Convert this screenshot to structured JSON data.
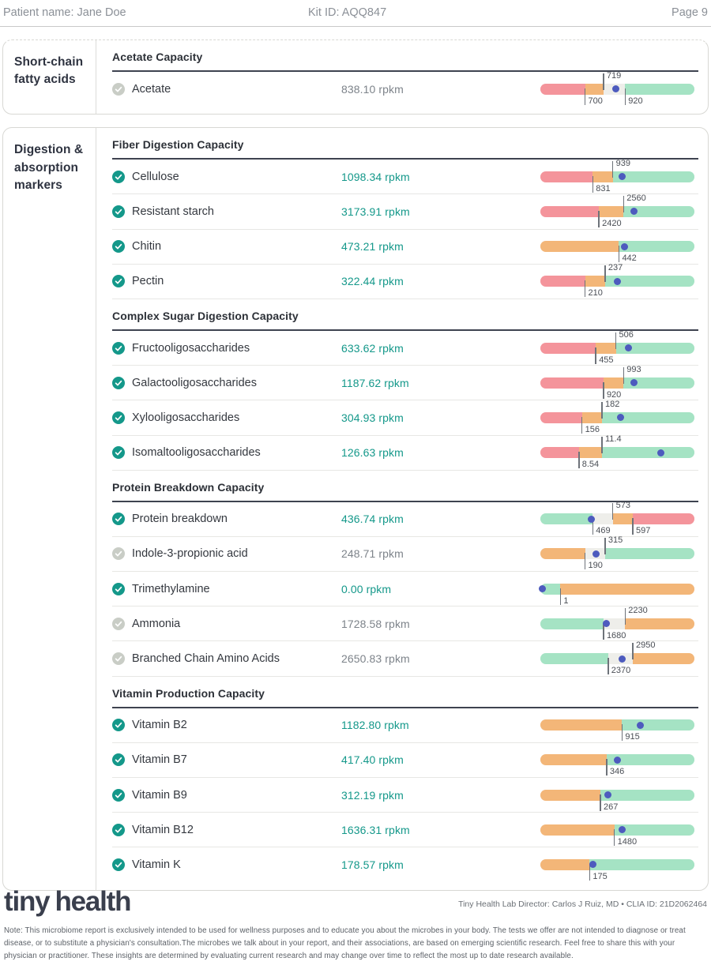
{
  "header": {
    "patient_label": "Patient name: Jane Doe",
    "kit_label": "Kit ID: AQQ847",
    "page_label": "Page 9"
  },
  "colors": {
    "accent_teal": "#14988a",
    "value_neutral": "#7d838a",
    "badge_good": "#14988a",
    "badge_neutral": "#c9cdc6",
    "bar_red": "#f4949b",
    "bar_orange": "#f3b678",
    "bar_green": "#a5e3c4",
    "bar_gray": "#eeeeea",
    "dot_indigo": "#4d5bbe"
  },
  "cards": [
    {
      "sidebar_label": "Short-chain fatty acids",
      "continued": true,
      "sections": [
        {
          "title": "Acetate Capacity",
          "rows": [
            {
              "label": "Acetate",
              "status": "neutral",
              "value": "838.10 rpkm",
              "bar": {
                "segments": [
                  {
                    "c": "red",
                    "to": 29
                  },
                  {
                    "c": "gray2",
                    "to": 41
                  },
                  {
                    "c": "grayzone",
                    "to": 55
                  },
                  {
                    "c": "green",
                    "to": 100
                  }
                ],
                "ticks": [
                  {
                    "p": 29,
                    "l": "700",
                    "s": "b"
                  },
                  {
                    "p": 41,
                    "l": "719",
                    "s": "t"
                  },
                  {
                    "p": 55,
                    "l": "920",
                    "s": "b"
                  }
                ],
                "dot": 49
              }
            }
          ]
        }
      ]
    },
    {
      "sidebar_label": "Digestion & absorption markers",
      "continued": false,
      "sections": [
        {
          "title": "Fiber Digestion Capacity",
          "rows": [
            {
              "label": "Cellulose",
              "status": "good",
              "value": "1098.34 rpkm",
              "bar": {
                "segments": [
                  {
                    "c": "red",
                    "to": 34
                  },
                  {
                    "c": "orange",
                    "to": 47
                  },
                  {
                    "c": "green",
                    "to": 100
                  }
                ],
                "ticks": [
                  {
                    "p": 34,
                    "l": "831",
                    "s": "b"
                  },
                  {
                    "p": 47,
                    "l": "939",
                    "s": "t"
                  }
                ],
                "dot": 53
              }
            },
            {
              "label": "Resistant starch",
              "status": "good",
              "value": "3173.91 rpkm",
              "bar": {
                "segments": [
                  {
                    "c": "red",
                    "to": 38
                  },
                  {
                    "c": "orange",
                    "to": 54
                  },
                  {
                    "c": "green",
                    "to": 100
                  }
                ],
                "ticks": [
                  {
                    "p": 38,
                    "l": "2420",
                    "s": "b"
                  },
                  {
                    "p": 54,
                    "l": "2560",
                    "s": "t"
                  }
                ],
                "dot": 61
              }
            },
            {
              "label": "Chitin",
              "status": "good",
              "value": "473.21 rpkm",
              "bar": {
                "segments": [
                  {
                    "c": "orange",
                    "to": 51
                  },
                  {
                    "c": "green",
                    "to": 100
                  }
                ],
                "ticks": [
                  {
                    "p": 51,
                    "l": "442",
                    "s": "b"
                  }
                ],
                "dot": 54.5
              }
            },
            {
              "label": "Pectin",
              "status": "good",
              "value": "322.44 rpkm",
              "bar": {
                "segments": [
                  {
                    "c": "red",
                    "to": 29
                  },
                  {
                    "c": "orange",
                    "to": 42
                  },
                  {
                    "c": "green",
                    "to": 100
                  }
                ],
                "ticks": [
                  {
                    "p": 29,
                    "l": "210",
                    "s": "b"
                  },
                  {
                    "p": 42,
                    "l": "237",
                    "s": "t"
                  }
                ],
                "dot": 50
              }
            }
          ]
        },
        {
          "title": "Complex Sugar Digestion Capacity",
          "rows": [
            {
              "label": "Fructooligosaccharides",
              "status": "good",
              "value": "633.62 rpkm",
              "bar": {
                "segments": [
                  {
                    "c": "red",
                    "to": 36
                  },
                  {
                    "c": "orange",
                    "to": 49
                  },
                  {
                    "c": "green",
                    "to": 100
                  }
                ],
                "ticks": [
                  {
                    "p": 36,
                    "l": "455",
                    "s": "b"
                  },
                  {
                    "p": 49,
                    "l": "506",
                    "s": "t"
                  }
                ],
                "dot": 57
              }
            },
            {
              "label": "Galactooligosaccharides",
              "status": "good",
              "value": "1187.62 rpkm",
              "bar": {
                "segments": [
                  {
                    "c": "red",
                    "to": 41
                  },
                  {
                    "c": "orange",
                    "to": 54
                  },
                  {
                    "c": "green",
                    "to": 100
                  }
                ],
                "ticks": [
                  {
                    "p": 41,
                    "l": "920",
                    "s": "b"
                  },
                  {
                    "p": 54,
                    "l": "993",
                    "s": "t"
                  }
                ],
                "dot": 61
              }
            },
            {
              "label": "Xylooligosaccharides",
              "status": "good",
              "value": "304.93 rpkm",
              "bar": {
                "segments": [
                  {
                    "c": "red",
                    "to": 27
                  },
                  {
                    "c": "orange",
                    "to": 40
                  },
                  {
                    "c": "green",
                    "to": 100
                  }
                ],
                "ticks": [
                  {
                    "p": 27,
                    "l": "156",
                    "s": "b"
                  },
                  {
                    "p": 40,
                    "l": "182",
                    "s": "t"
                  }
                ],
                "dot": 52
              }
            },
            {
              "label": "Isomaltooligosaccharides",
              "status": "good",
              "value": "126.63 rpkm",
              "bar": {
                "segments": [
                  {
                    "c": "red",
                    "to": 25
                  },
                  {
                    "c": "orange",
                    "to": 40
                  },
                  {
                    "c": "green",
                    "to": 100
                  }
                ],
                "ticks": [
                  {
                    "p": 25,
                    "l": "8.54",
                    "s": "b"
                  },
                  {
                    "p": 40,
                    "l": "11.4",
                    "s": "t"
                  }
                ],
                "dot": 78
              }
            }
          ]
        },
        {
          "title": "Protein Breakdown Capacity",
          "rows": [
            {
              "label": "Protein breakdown",
              "status": "good",
              "value": "436.74 rpkm",
              "bar": {
                "segments": [
                  {
                    "c": "green",
                    "to": 34
                  },
                  {
                    "c": "grayzone",
                    "to": 47
                  },
                  {
                    "c": "orange",
                    "to": 60
                  },
                  {
                    "c": "red",
                    "to": 100
                  }
                ],
                "ticks": [
                  {
                    "p": 34,
                    "l": "469",
                    "s": "b"
                  },
                  {
                    "p": 47,
                    "l": "573",
                    "s": "t"
                  },
                  {
                    "p": 60,
                    "l": "597",
                    "s": "b"
                  }
                ],
                "dot": 33
              }
            },
            {
              "label": "Indole-3-propionic acid",
              "status": "neutral",
              "value": "248.71 rpkm",
              "bar": {
                "segments": [
                  {
                    "c": "orange",
                    "to": 29
                  },
                  {
                    "c": "grayzone",
                    "to": 42
                  },
                  {
                    "c": "green",
                    "to": 100
                  }
                ],
                "ticks": [
                  {
                    "p": 29,
                    "l": "190",
                    "s": "b"
                  },
                  {
                    "p": 42,
                    "l": "315",
                    "s": "t"
                  }
                ],
                "dot": 36
              }
            },
            {
              "label": "Trimethylamine",
              "status": "good",
              "value": "0.00 rpkm",
              "bar": {
                "segments": [
                  {
                    "c": "green",
                    "to": 13
                  },
                  {
                    "c": "orange",
                    "to": 100
                  }
                ],
                "ticks": [
                  {
                    "p": 13,
                    "l": "1",
                    "s": "b"
                  }
                ],
                "dot": 1.5
              }
            },
            {
              "label": "Ammonia",
              "status": "neutral",
              "value": "1728.58 rpkm",
              "bar": {
                "segments": [
                  {
                    "c": "green",
                    "to": 41
                  },
                  {
                    "c": "grayzone",
                    "to": 55
                  },
                  {
                    "c": "orange",
                    "to": 100
                  }
                ],
                "ticks": [
                  {
                    "p": 41,
                    "l": "1680",
                    "s": "b"
                  },
                  {
                    "p": 55,
                    "l": "2230",
                    "s": "t"
                  }
                ],
                "dot": 43
              }
            },
            {
              "label": "Branched Chain Amino Acids",
              "status": "neutral",
              "value": "2650.83 rpkm",
              "bar": {
                "segments": [
                  {
                    "c": "green",
                    "to": 44
                  },
                  {
                    "c": "grayzone",
                    "to": 60
                  },
                  {
                    "c": "orange",
                    "to": 100
                  }
                ],
                "ticks": [
                  {
                    "p": 44,
                    "l": "2370",
                    "s": "b"
                  },
                  {
                    "p": 60,
                    "l": "2950",
                    "s": "t"
                  }
                ],
                "dot": 53
              }
            }
          ]
        },
        {
          "title": "Vitamin Production Capacity",
          "rows": [
            {
              "label": "Vitamin B2",
              "status": "good",
              "value": "1182.80 rpkm",
              "bar": {
                "segments": [
                  {
                    "c": "orange",
                    "to": 53
                  },
                  {
                    "c": "green",
                    "to": 100
                  }
                ],
                "ticks": [
                  {
                    "p": 53,
                    "l": "915",
                    "s": "b"
                  }
                ],
                "dot": 65
              }
            },
            {
              "label": "Vitamin B7",
              "status": "good",
              "value": "417.40 rpkm",
              "bar": {
                "segments": [
                  {
                    "c": "orange",
                    "to": 43
                  },
                  {
                    "c": "green",
                    "to": 100
                  }
                ],
                "ticks": [
                  {
                    "p": 43,
                    "l": "346",
                    "s": "b"
                  }
                ],
                "dot": 50
              }
            },
            {
              "label": "Vitamin B9",
              "status": "good",
              "value": "312.19 rpkm",
              "bar": {
                "segments": [
                  {
                    "c": "orange",
                    "to": 39
                  },
                  {
                    "c": "green",
                    "to": 100
                  }
                ],
                "ticks": [
                  {
                    "p": 39,
                    "l": "267",
                    "s": "b"
                  }
                ],
                "dot": 44
              }
            },
            {
              "label": "Vitamin B12",
              "status": "good",
              "value": "1636.31 rpkm",
              "bar": {
                "segments": [
                  {
                    "c": "orange",
                    "to": 48
                  },
                  {
                    "c": "green",
                    "to": 100
                  }
                ],
                "ticks": [
                  {
                    "p": 48,
                    "l": "1480",
                    "s": "b"
                  }
                ],
                "dot": 53
              }
            },
            {
              "label": "Vitamin K",
              "status": "good",
              "value": "178.57 rpkm",
              "bar": {
                "segments": [
                  {
                    "c": "orange",
                    "to": 32
                  },
                  {
                    "c": "green",
                    "to": 100
                  }
                ],
                "ticks": [
                  {
                    "p": 32,
                    "l": "175",
                    "s": "b"
                  }
                ],
                "dot": 34
              }
            }
          ]
        }
      ]
    }
  ],
  "footer": {
    "logo_part1": "tiny",
    "logo_part2": "health",
    "director_line": "Tiny Health Lab Director: Carlos J Ruiz, MD • CLIA ID: 21D2062464",
    "note": "Note: This microbiome report is exclusively intended to be used for wellness purposes and to educate you about the microbes in your body. The tests we offer are not intended to diagnose or treat disease, or to substitute a physician's consultation.The microbes we talk about in your report, and their associations, are based on emerging scientific research. Feel free to share this with your physician or practitioner. These insights are determined by evaluating current research and may change over time to reflect the most up to date research available."
  }
}
